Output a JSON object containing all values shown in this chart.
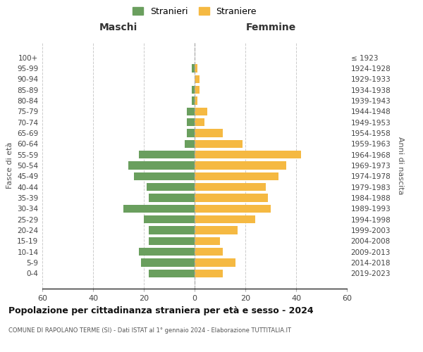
{
  "age_groups": [
    "100+",
    "95-99",
    "90-94",
    "85-89",
    "80-84",
    "75-79",
    "70-74",
    "65-69",
    "60-64",
    "55-59",
    "50-54",
    "45-49",
    "40-44",
    "35-39",
    "30-34",
    "25-29",
    "20-24",
    "15-19",
    "10-14",
    "5-9",
    "0-4"
  ],
  "birth_years": [
    "≤ 1923",
    "1924-1928",
    "1929-1933",
    "1934-1938",
    "1939-1943",
    "1944-1948",
    "1949-1953",
    "1954-1958",
    "1959-1963",
    "1964-1968",
    "1969-1973",
    "1974-1978",
    "1979-1983",
    "1984-1988",
    "1989-1993",
    "1994-1998",
    "1999-2003",
    "2004-2008",
    "2009-2013",
    "2014-2018",
    "2019-2023"
  ],
  "maschi": [
    0,
    1,
    0,
    1,
    1,
    3,
    3,
    3,
    4,
    22,
    26,
    24,
    19,
    18,
    28,
    20,
    18,
    18,
    22,
    21,
    18
  ],
  "femmine": [
    0,
    1,
    2,
    2,
    1,
    5,
    4,
    11,
    19,
    42,
    36,
    33,
    28,
    29,
    30,
    24,
    17,
    10,
    11,
    16,
    11
  ],
  "color_maschi": "#6a9f5e",
  "color_femmine": "#f5b942",
  "title": "Popolazione per cittadinanza straniera per età e sesso - 2024",
  "subtitle": "COMUNE DI RAPOLANO TERME (SI) - Dati ISTAT al 1° gennaio 2024 - Elaborazione TUTTITALIA.IT",
  "xlabel_left": "Maschi",
  "xlabel_right": "Femmine",
  "ylabel_left": "Fasce di età",
  "ylabel_right": "Anni di nascita",
  "legend_maschi": "Stranieri",
  "legend_femmine": "Straniere",
  "xlim": 60,
  "background_color": "#ffffff",
  "grid_color": "#cccccc"
}
